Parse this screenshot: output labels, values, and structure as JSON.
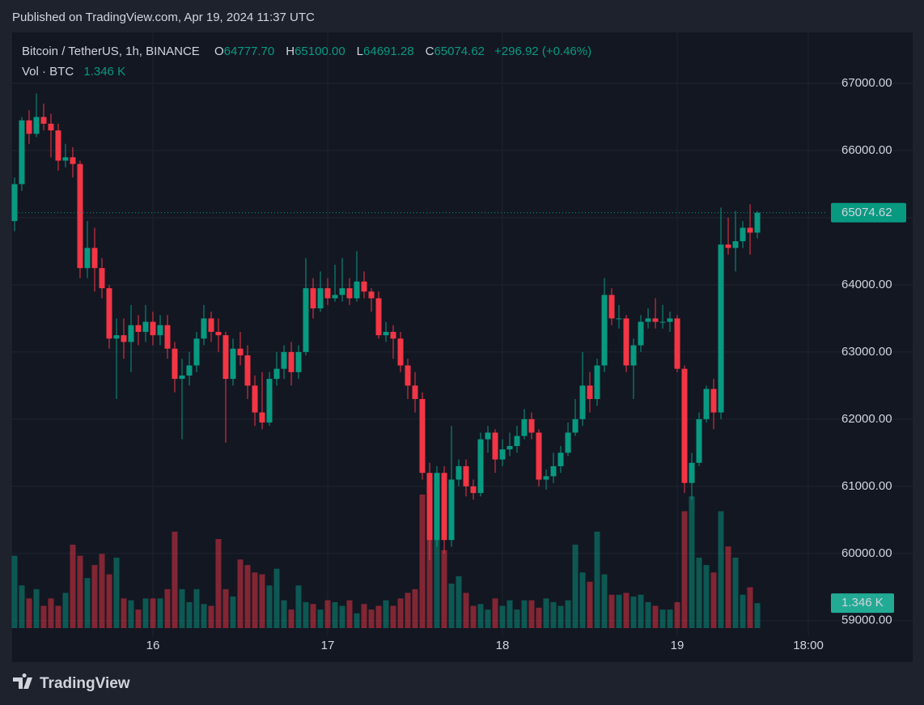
{
  "published": "Published on TradingView.com, Apr 19, 2024 11:37 UTC",
  "brand": "TradingView",
  "chart_data": {
    "type": "candlestick",
    "symbol": "Bitcoin / TetherUS, 1h, BINANCE",
    "legend": [
      {
        "key": "O",
        "text": "64777.70"
      },
      {
        "key": "H",
        "text": "65100.00"
      },
      {
        "key": "L",
        "text": "64691.28"
      },
      {
        "key": "C",
        "text": "65074.62"
      }
    ],
    "change": "+296.92 (+0.46%)",
    "volume_title": "Vol · BTC",
    "volume_text": "1.346 K",
    "last_price_label": "65074.62",
    "last_volume_label": "1.346 K",
    "up_color": "#089981",
    "down_color": "#f23645",
    "open": [
      64950,
      65500,
      66450,
      66250,
      66500,
      66400,
      66300,
      65850,
      65900,
      65800,
      64250,
      64550,
      64250,
      63950,
      63200,
      63250,
      63150,
      63400,
      63300,
      63450,
      63250,
      63400,
      63050,
      62600,
      62650,
      62800,
      63200,
      63500,
      63300,
      63250,
      62600,
      63050,
      62950,
      62500,
      62100,
      61950,
      62600,
      62750,
      63000,
      62700,
      63000,
      63950,
      63650,
      63950,
      63800,
      63850,
      63950,
      63800,
      64050,
      63900,
      63800,
      63250,
      63300,
      63200,
      62800,
      62500,
      62300,
      61200,
      60200,
      61200,
      60200,
      61100,
      61300,
      61000,
      60900,
      61700,
      61800,
      61400,
      61550,
      61600,
      61750,
      62000,
      61800,
      61100,
      61150,
      61300,
      61500,
      61800,
      62000,
      62500,
      62300,
      62800,
      63850,
      63500,
      63500,
      62800,
      63100,
      63450,
      63500,
      63450,
      63450,
      63500,
      62750,
      61050,
      61350,
      62000,
      62450,
      62100,
      64600,
      64550,
      64650,
      64850,
      64777.7
    ],
    "high": [
      65600,
      66500,
      66600,
      66850,
      66700,
      66550,
      66400,
      66100,
      66050,
      65850,
      64950,
      64850,
      64400,
      64000,
      63500,
      63500,
      63700,
      63550,
      63700,
      63600,
      63550,
      63550,
      63150,
      62900,
      63000,
      63300,
      63700,
      63600,
      63500,
      63300,
      63200,
      63300,
      63100,
      62650,
      62700,
      62700,
      63000,
      63100,
      63150,
      63100,
      64400,
      64100,
      64200,
      64100,
      64300,
      64400,
      64100,
      64500,
      64200,
      63950,
      63900,
      63450,
      63400,
      63300,
      62900,
      62700,
      62400,
      61350,
      61300,
      61300,
      61900,
      61400,
      61400,
      61100,
      61800,
      61900,
      61850,
      61700,
      61800,
      61900,
      62150,
      62100,
      61850,
      61250,
      61500,
      61600,
      61950,
      62300,
      63000,
      62700,
      62900,
      64100,
      63950,
      63700,
      63550,
      63200,
      63550,
      63650,
      63800,
      63700,
      63600,
      63550,
      62800,
      61500,
      62100,
      62500,
      62600,
      65150,
      65000,
      65100,
      64950,
      65200,
      65100
    ],
    "low": [
      64800,
      65400,
      66100,
      66200,
      66300,
      65900,
      65700,
      65750,
      65600,
      64100,
      64100,
      63900,
      63800,
      63050,
      62300,
      62900,
      62700,
      63100,
      63150,
      63100,
      63100,
      62900,
      62400,
      61700,
      62500,
      62700,
      63100,
      63150,
      63000,
      61650,
      62500,
      62800,
      62300,
      61900,
      61850,
      61900,
      62500,
      62600,
      62500,
      62600,
      62950,
      63500,
      63600,
      63700,
      63750,
      63750,
      63700,
      63750,
      63800,
      63600,
      63200,
      63150,
      62900,
      62700,
      62300,
      62100,
      61100,
      59900,
      60100,
      60000,
      60100,
      61000,
      60850,
      60800,
      60850,
      61500,
      61200,
      61300,
      61450,
      61500,
      61700,
      61700,
      61000,
      60950,
      61050,
      61200,
      61450,
      61750,
      61900,
      62100,
      62200,
      62700,
      63400,
      63350,
      62700,
      62300,
      63000,
      63350,
      63350,
      63350,
      63300,
      62700,
      60900,
      60800,
      61300,
      61950,
      61850,
      62000,
      64450,
      64200,
      64550,
      64450,
      64691.28
    ],
    "close": [
      65500,
      66450,
      66250,
      66500,
      66400,
      66300,
      65850,
      65900,
      65800,
      64250,
      64550,
      64250,
      63950,
      63200,
      63250,
      63150,
      63400,
      63300,
      63450,
      63250,
      63400,
      63050,
      62600,
      62650,
      62800,
      63200,
      63500,
      63300,
      63250,
      62600,
      63050,
      62950,
      62500,
      62100,
      61950,
      62600,
      62750,
      63000,
      62700,
      63000,
      63950,
      63650,
      63950,
      63800,
      63850,
      63950,
      63800,
      64050,
      63900,
      63800,
      63250,
      63300,
      63200,
      62800,
      62500,
      62300,
      61200,
      60200,
      61200,
      60200,
      61100,
      61300,
      61000,
      60900,
      61700,
      61800,
      61400,
      61550,
      61600,
      61750,
      62000,
      61800,
      61100,
      61150,
      61300,
      61500,
      61800,
      62000,
      62500,
      62300,
      62800,
      63850,
      63500,
      63500,
      62800,
      63100,
      63450,
      63500,
      63450,
      63450,
      63500,
      62750,
      61050,
      61350,
      62000,
      62450,
      62100,
      64600,
      64550,
      64650,
      64850,
      64777.7,
      65074.62
    ],
    "volume": [
      3.9,
      2.3,
      1.6,
      2.1,
      1.2,
      1.6,
      1.2,
      1.9,
      4.5,
      3.9,
      2.7,
      3.4,
      4.0,
      2.9,
      3.8,
      1.6,
      1.5,
      1.0,
      1.6,
      1.6,
      1.6,
      2.1,
      5.2,
      2.1,
      1.4,
      2.1,
      1.3,
      1.2,
      4.8,
      2.1,
      1.7,
      3.7,
      3.4,
      3.0,
      2.9,
      2.3,
      3.2,
      1.5,
      1.0,
      2.3,
      1.4,
      1.3,
      1.0,
      1.5,
      1.4,
      1.2,
      1.5,
      0.8,
      1.3,
      1.0,
      1.2,
      1.5,
      1.2,
      1.6,
      1.9,
      2.1,
      7.2,
      7.1,
      5.8,
      4.2,
      2.4,
      2.8,
      1.9,
      1.2,
      1.3,
      1.0,
      1.6,
      1.2,
      1.5,
      1.0,
      1.5,
      1.5,
      1.1,
      1.6,
      1.4,
      1.2,
      1.5,
      4.5,
      3.0,
      2.5,
      5.2,
      2.9,
      1.8,
      1.8,
      1.9,
      1.7,
      1.8,
      1.4,
      1.2,
      1.0,
      1.0,
      1.4,
      6.3,
      7.1,
      3.8,
      3.4,
      3.0,
      6.3,
      4.4,
      3.8,
      1.8,
      2.2,
      1.346
    ],
    "xlim": [
      -0.33,
      111.33
    ],
    "xticks": [
      {
        "value": 19,
        "label": "16"
      },
      {
        "value": 43,
        "label": "17"
      },
      {
        "value": 67,
        "label": "18"
      },
      {
        "value": 91,
        "label": "19"
      },
      {
        "value": 109,
        "label": "18:00"
      }
    ],
    "ylim": [
      58780,
      67760
    ],
    "yticks": [
      {
        "value": 59000,
        "label": "59000.00"
      },
      {
        "value": 60000,
        "label": "60000.00"
      },
      {
        "value": 61000,
        "label": "61000.00"
      },
      {
        "value": 62000,
        "label": "62000.00"
      },
      {
        "value": 63000,
        "label": "63000.00"
      },
      {
        "value": 64000,
        "label": "64000.00"
      },
      {
        "value": 65000,
        "label": "65000.00"
      },
      {
        "value": 66000,
        "label": "66000.00"
      },
      {
        "value": 67000,
        "label": "67000.00"
      }
    ],
    "grid": true
  }
}
